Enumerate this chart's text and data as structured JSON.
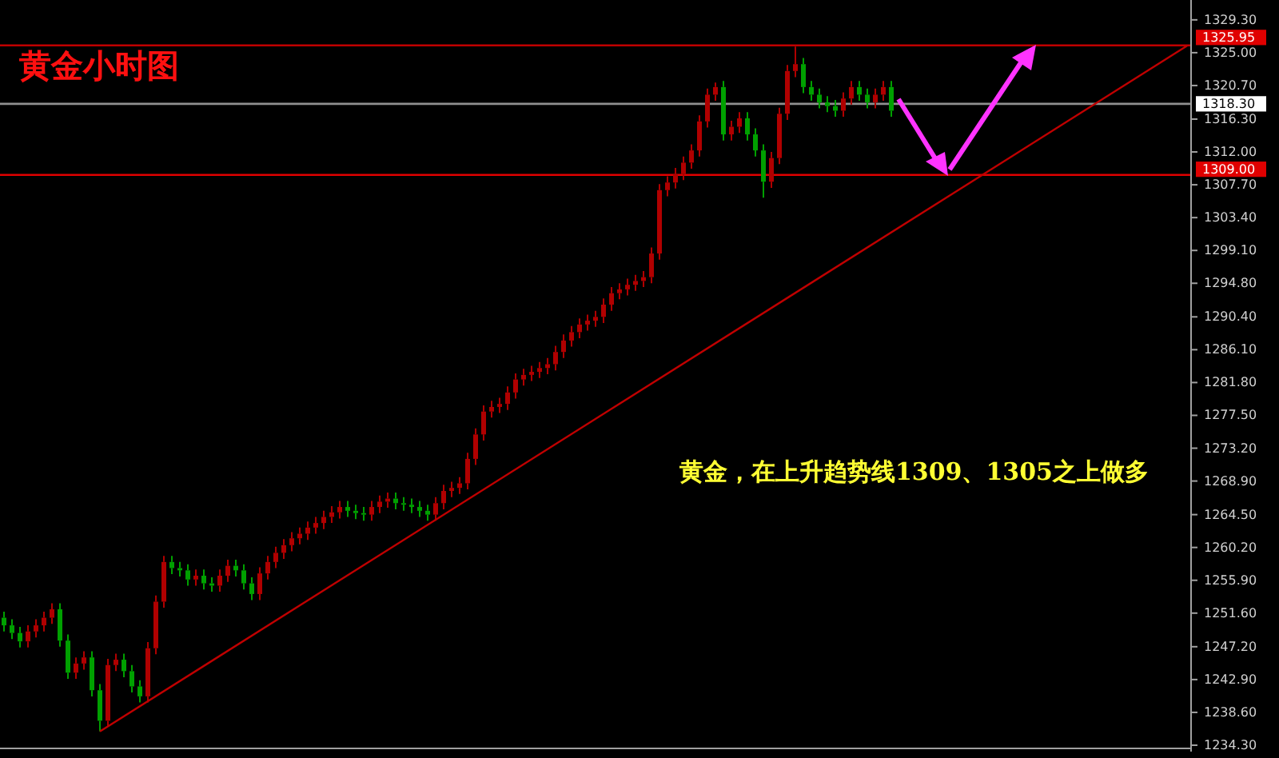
{
  "chart_data": {
    "type": "candlestick",
    "title": "黄金小时图",
    "annotations": [
      "黄金，在上升趋势线1309、1305之上做多"
    ],
    "categories": [
      null,
      null,
      null,
      null,
      null,
      null,
      null,
      null,
      null,
      null,
      null,
      null,
      null,
      null,
      null,
      null,
      null,
      null,
      null,
      null,
      null,
      null,
      null,
      null,
      null,
      null,
      null,
      null,
      null,
      null,
      null,
      null,
      null,
      null,
      null,
      null,
      null,
      null,
      null,
      null,
      null,
      null,
      null,
      null,
      null,
      null,
      null,
      null,
      null,
      null,
      null,
      null,
      null,
      null,
      null,
      null,
      null,
      null,
      null,
      null,
      null,
      null,
      null,
      null,
      null,
      null,
      null,
      null,
      null,
      null,
      null,
      null,
      null,
      null,
      null,
      null,
      null,
      null,
      null,
      null,
      null,
      null,
      null,
      null,
      null,
      null,
      null,
      null,
      null,
      null,
      null,
      null,
      null,
      null,
      null,
      null,
      null,
      null,
      null,
      null,
      null,
      null,
      null,
      null,
      null,
      null,
      null,
      null,
      null,
      null,
      null,
      null,
      null,
      null,
      null,
      null,
      null,
      null,
      null,
      null,
      null,
      null,
      null,
      null,
      null,
      null,
      null,
      null,
      null,
      null,
      null,
      null,
      null,
      null,
      null,
      null,
      null,
      null,
      null,
      null,
      null,
      null,
      null,
      null,
      null,
      null,
      null,
      null,
      null
    ],
    "ohlc": [
      [
        1251.0,
        1251.8,
        1249.2,
        1250.0
      ],
      [
        1250.0,
        1250.8,
        1248.2,
        1249.0
      ],
      [
        1249.0,
        1249.8,
        1247.1,
        1247.9
      ],
      [
        1247.9,
        1250.0,
        1247.1,
        1249.2
      ],
      [
        1249.2,
        1250.8,
        1248.4,
        1250.0
      ],
      [
        1250.0,
        1251.8,
        1249.2,
        1251.0
      ],
      [
        1251.0,
        1252.9,
        1250.2,
        1252.1
      ],
      [
        1252.1,
        1252.9,
        1247.2,
        1248.0
      ],
      [
        1248.0,
        1248.8,
        1243.0,
        1243.8
      ],
      [
        1243.8,
        1245.8,
        1243.0,
        1245.0
      ],
      [
        1245.0,
        1246.6,
        1244.2,
        1245.8
      ],
      [
        1245.8,
        1246.6,
        1240.7,
        1241.5
      ],
      [
        1241.5,
        1242.3,
        1236.1,
        1237.5
      ],
      [
        1237.5,
        1245.6,
        1236.7,
        1244.8
      ],
      [
        1244.8,
        1246.3,
        1244.0,
        1245.5
      ],
      [
        1245.5,
        1246.3,
        1243.2,
        1244.0
      ],
      [
        1244.0,
        1244.8,
        1241.2,
        1242.0
      ],
      [
        1242.0,
        1242.8,
        1239.9,
        1240.7
      ],
      [
        1240.7,
        1247.8,
        1239.9,
        1247.0
      ],
      [
        1247.0,
        1253.9,
        1246.2,
        1253.1
      ],
      [
        1253.1,
        1259.1,
        1252.3,
        1258.3
      ],
      [
        1258.3,
        1259.1,
        1256.7,
        1257.5
      ],
      [
        1257.5,
        1258.3,
        1256.4,
        1257.2
      ],
      [
        1257.2,
        1258.0,
        1255.2,
        1256.0
      ],
      [
        1256.0,
        1257.3,
        1255.2,
        1256.5
      ],
      [
        1256.5,
        1257.3,
        1254.7,
        1255.5
      ],
      [
        1255.5,
        1256.3,
        1254.4,
        1255.2
      ],
      [
        1255.2,
        1257.3,
        1254.4,
        1256.5
      ],
      [
        1256.5,
        1258.6,
        1255.7,
        1257.8
      ],
      [
        1257.8,
        1258.6,
        1256.4,
        1257.2
      ],
      [
        1257.2,
        1258.0,
        1254.7,
        1255.5
      ],
      [
        1255.5,
        1256.3,
        1253.3,
        1254.1
      ],
      [
        1254.1,
        1257.6,
        1253.3,
        1256.8
      ],
      [
        1256.8,
        1259.1,
        1256.0,
        1258.3
      ],
      [
        1258.3,
        1260.3,
        1257.5,
        1259.5
      ],
      [
        1259.5,
        1261.3,
        1258.7,
        1260.5
      ],
      [
        1260.5,
        1262.2,
        1259.7,
        1261.4
      ],
      [
        1261.4,
        1262.8,
        1260.6,
        1262.0
      ],
      [
        1262.0,
        1263.6,
        1261.2,
        1262.8
      ],
      [
        1262.8,
        1264.2,
        1262.0,
        1263.4
      ],
      [
        1263.4,
        1265.0,
        1262.6,
        1264.2
      ],
      [
        1264.2,
        1265.6,
        1263.4,
        1264.8
      ],
      [
        1264.8,
        1266.3,
        1264.0,
        1265.5
      ],
      [
        1265.5,
        1266.3,
        1264.2,
        1265.0
      ],
      [
        1265.0,
        1265.8,
        1263.9,
        1264.7
      ],
      [
        1264.7,
        1265.5,
        1263.7,
        1264.5
      ],
      [
        1264.5,
        1266.3,
        1263.7,
        1265.5
      ],
      [
        1265.5,
        1267.0,
        1264.7,
        1266.2
      ],
      [
        1266.2,
        1267.4,
        1265.4,
        1266.6
      ],
      [
        1266.6,
        1267.4,
        1265.2,
        1266.0
      ],
      [
        1266.0,
        1266.8,
        1265.0,
        1265.8
      ],
      [
        1265.8,
        1266.6,
        1264.7,
        1265.5
      ],
      [
        1265.5,
        1266.3,
        1264.2,
        1265.0
      ],
      [
        1265.0,
        1265.8,
        1263.7,
        1264.5
      ],
      [
        1264.5,
        1266.8,
        1263.7,
        1266.0
      ],
      [
        1266.0,
        1268.4,
        1265.2,
        1267.6
      ],
      [
        1267.6,
        1268.8,
        1266.8,
        1268.0
      ],
      [
        1268.0,
        1269.4,
        1267.2,
        1268.6
      ],
      [
        1268.6,
        1272.6,
        1267.8,
        1271.8
      ],
      [
        1271.8,
        1275.8,
        1271.0,
        1275.0
      ],
      [
        1275.0,
        1278.8,
        1274.2,
        1278.0
      ],
      [
        1278.0,
        1279.4,
        1277.2,
        1278.6
      ],
      [
        1278.6,
        1279.8,
        1277.8,
        1279.0
      ],
      [
        1279.0,
        1281.3,
        1278.2,
        1280.5
      ],
      [
        1280.5,
        1283.0,
        1279.7,
        1282.2
      ],
      [
        1282.2,
        1283.6,
        1281.4,
        1282.8
      ],
      [
        1282.8,
        1284.0,
        1282.0,
        1283.2
      ],
      [
        1283.2,
        1284.5,
        1282.4,
        1283.7
      ],
      [
        1283.7,
        1285.0,
        1282.9,
        1284.2
      ],
      [
        1284.2,
        1286.6,
        1283.4,
        1285.8
      ],
      [
        1285.8,
        1288.1,
        1285.0,
        1287.3
      ],
      [
        1287.3,
        1289.2,
        1286.5,
        1288.4
      ],
      [
        1288.4,
        1290.2,
        1287.6,
        1289.4
      ],
      [
        1289.4,
        1290.7,
        1288.6,
        1289.9
      ],
      [
        1289.9,
        1291.2,
        1289.1,
        1290.4
      ],
      [
        1290.4,
        1292.8,
        1289.6,
        1292.0
      ],
      [
        1292.0,
        1294.3,
        1291.2,
        1293.5
      ],
      [
        1293.5,
        1294.8,
        1292.7,
        1294.0
      ],
      [
        1294.0,
        1295.4,
        1293.2,
        1294.6
      ],
      [
        1294.6,
        1295.9,
        1293.8,
        1295.1
      ],
      [
        1295.1,
        1296.4,
        1294.3,
        1295.6
      ],
      [
        1295.6,
        1299.5,
        1294.8,
        1298.7
      ],
      [
        1298.7,
        1307.8,
        1297.9,
        1307.0
      ],
      [
        1307.0,
        1308.8,
        1306.2,
        1308.0
      ],
      [
        1308.0,
        1309.9,
        1307.2,
        1309.1
      ],
      [
        1309.1,
        1311.4,
        1308.3,
        1310.6
      ],
      [
        1310.6,
        1313.0,
        1309.8,
        1312.2
      ],
      [
        1312.2,
        1316.8,
        1311.4,
        1316.0
      ],
      [
        1316.0,
        1320.3,
        1315.2,
        1319.5
      ],
      [
        1319.5,
        1321.1,
        1318.7,
        1320.5
      ],
      [
        1320.5,
        1321.3,
        1313.5,
        1314.3
      ],
      [
        1314.3,
        1316.1,
        1313.5,
        1315.3
      ],
      [
        1315.3,
        1317.2,
        1314.5,
        1316.4
      ],
      [
        1316.4,
        1317.2,
        1313.5,
        1314.3
      ],
      [
        1314.3,
        1315.1,
        1311.4,
        1312.2
      ],
      [
        1312.2,
        1313.0,
        1306.0,
        1308.1
      ],
      [
        1308.1,
        1312.0,
        1307.3,
        1311.2
      ],
      [
        1311.2,
        1317.8,
        1310.4,
        1317.0
      ],
      [
        1317.0,
        1323.4,
        1316.2,
        1322.6
      ],
      [
        1322.6,
        1325.8,
        1321.8,
        1323.5
      ],
      [
        1323.5,
        1324.3,
        1319.7,
        1320.5
      ],
      [
        1320.5,
        1321.3,
        1318.7,
        1319.5
      ],
      [
        1319.5,
        1320.3,
        1317.7,
        1318.5
      ],
      [
        1318.5,
        1319.3,
        1317.2,
        1318.0
      ],
      [
        1318.0,
        1318.8,
        1316.6,
        1317.4
      ],
      [
        1317.4,
        1319.8,
        1316.6,
        1319.0
      ],
      [
        1319.0,
        1321.3,
        1318.2,
        1320.5
      ],
      [
        1320.5,
        1321.3,
        1318.7,
        1319.5
      ],
      [
        1319.5,
        1320.3,
        1317.7,
        1318.5
      ],
      [
        1318.5,
        1320.3,
        1317.7,
        1319.5
      ],
      [
        1319.5,
        1321.3,
        1318.7,
        1320.5
      ],
      [
        1320.5,
        1321.3,
        1316.6,
        1317.4
      ],
      null,
      null,
      null,
      null,
      null,
      null,
      null,
      null,
      null,
      null,
      null,
      null,
      null,
      null,
      null,
      null,
      null,
      null,
      null,
      null,
      null,
      null,
      null,
      null,
      null,
      null,
      null,
      null,
      null,
      null,
      null,
      null,
      null,
      null,
      null,
      null,
      null
    ],
    "series": [
      {
        "type": "line",
        "values": [
          null,
          null,
          null,
          null,
          null,
          null,
          null,
          null,
          null,
          null,
          null,
          null,
          1236.1,
          null,
          null,
          null,
          null,
          null,
          null,
          null,
          null,
          null,
          null,
          null,
          null,
          null,
          null,
          null,
          null,
          null,
          null,
          null,
          null,
          null,
          null,
          null,
          null,
          null,
          null,
          null,
          null,
          null,
          null,
          null,
          null,
          null,
          null,
          null,
          null,
          null,
          null,
          null,
          null,
          null,
          null,
          null,
          null,
          null,
          null,
          null,
          null,
          null,
          null,
          null,
          null,
          null,
          null,
          null,
          null,
          null,
          null,
          null,
          null,
          null,
          null,
          null,
          null,
          null,
          null,
          null,
          null,
          null,
          null,
          null,
          null,
          null,
          null,
          null,
          null,
          null,
          null,
          null,
          null,
          null,
          null,
          null,
          null,
          null,
          null,
          null,
          null,
          null,
          null,
          null,
          null,
          null,
          null,
          null,
          null,
          null,
          null,
          null,
          null,
          null,
          null,
          null,
          null,
          null,
          null,
          null,
          null,
          null,
          null,
          null,
          null,
          null,
          null,
          null,
          null,
          null,
          null,
          null,
          null,
          null,
          null,
          null,
          null,
          null,
          null,
          null,
          null,
          null,
          null,
          null,
          null,
          null,
          null,
          null,
          1325.9
        ],
        "color": "#c00000"
      }
    ],
    "ylim": [
      1234.3,
      1331.9
    ],
    "yticks": [
      {
        "value": 1234.3,
        "label": "1234.30"
      },
      {
        "value": 1238.6,
        "label": "1238.60"
      },
      {
        "value": 1242.9,
        "label": "1242.90"
      },
      {
        "value": 1247.2,
        "label": "1247.20"
      },
      {
        "value": 1251.6,
        "label": "1251.60"
      },
      {
        "value": 1255.9,
        "label": "1255.90"
      },
      {
        "value": 1260.2,
        "label": "1260.20"
      },
      {
        "value": 1264.5,
        "label": "1264.50"
      },
      {
        "value": 1268.9,
        "label": "1268.90"
      },
      {
        "value": 1273.2,
        "label": "1273.20"
      },
      {
        "value": 1277.5,
        "label": "1277.50"
      },
      {
        "value": 1281.8,
        "label": "1281.80"
      },
      {
        "value": 1286.1,
        "label": "1286.10"
      },
      {
        "value": 1290.4,
        "label": "1290.40"
      },
      {
        "value": 1294.8,
        "label": "1294.80"
      },
      {
        "value": 1299.1,
        "label": "1299.10"
      },
      {
        "value": 1303.4,
        "label": "1303.40"
      },
      {
        "value": 1307.7,
        "label": "1307.70"
      },
      {
        "value": 1312.0,
        "label": "1312.00"
      },
      {
        "value": 1316.3,
        "label": "1316.30"
      },
      {
        "value": 1320.7,
        "label": "1320.70"
      },
      {
        "value": 1325.0,
        "label": "1325.00"
      },
      {
        "value": 1329.3,
        "label": "1329.30"
      }
    ],
    "ref_lines": [
      {
        "axis": "y",
        "value": 1325.95,
        "label": "1325.95",
        "color": "#c00000"
      },
      {
        "axis": "y",
        "value": 1318.3,
        "label": "1318.30",
        "color": "#909090"
      },
      {
        "axis": "y",
        "value": 1309.0,
        "label": "1309.00",
        "color": "#e00000"
      }
    ]
  }
}
